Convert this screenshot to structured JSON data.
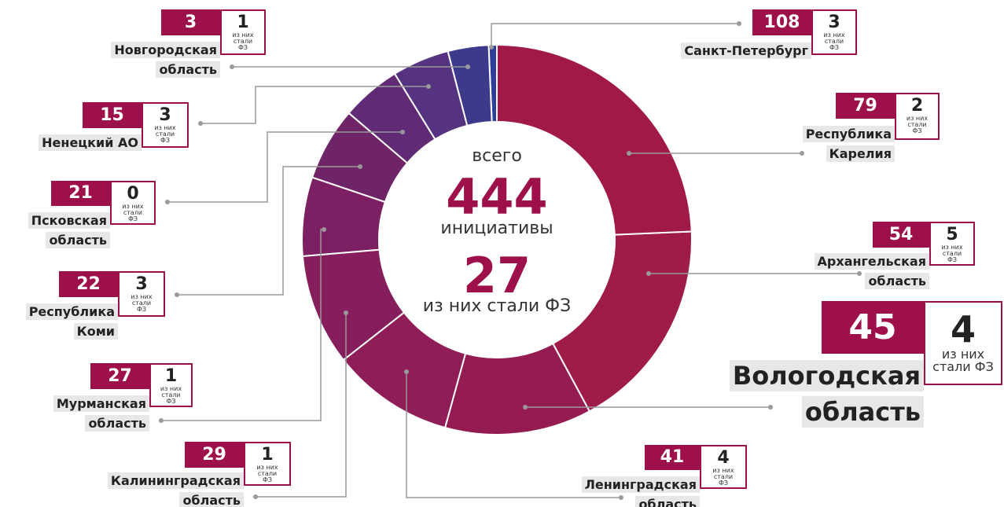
{
  "chart_data": {
    "type": "donut",
    "center": {
      "top_label": "всего",
      "total": 444,
      "total_label": "инициативы",
      "laws": 27,
      "laws_label": "из них стали ФЗ"
    },
    "law_label": "из них стали ФЗ",
    "categories": [
      "Санкт-Петербург",
      "Республика Карелия",
      "Архангельская область",
      "Вологодская область",
      "Ленинградская область",
      "Калининградская область",
      "Мурманская область",
      "Республика Коми",
      "Псковская область",
      "Ненецкий АО",
      "Новгородская область"
    ],
    "values": [
      108,
      79,
      54,
      45,
      41,
      29,
      27,
      22,
      21,
      15,
      3
    ],
    "laws": [
      3,
      2,
      5,
      4,
      4,
      1,
      1,
      3,
      0,
      3,
      1
    ],
    "colors": [
      "#a01a45",
      "#9e1b4a",
      "#951c52",
      "#8e1d58",
      "#861e5e",
      "#7c2063",
      "#6f2468",
      "#612a74",
      "#553380",
      "#3d3a8c",
      "#2f3e98"
    ]
  }
}
